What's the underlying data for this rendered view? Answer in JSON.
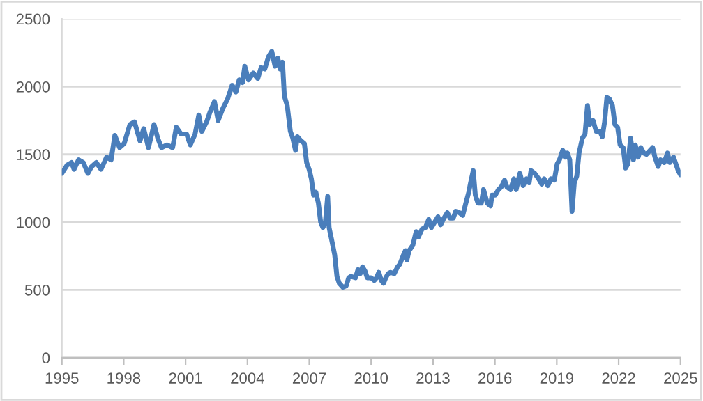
{
  "chart_data": {
    "type": "line",
    "color": "#4a7ebb",
    "grid": "y",
    "legend": false,
    "marker": "none",
    "line_style": "solid",
    "xlim": [
      1995,
      2025
    ],
    "xticks": [
      1995,
      1998,
      2001,
      2004,
      2007,
      2010,
      2013,
      2016,
      2019,
      2022,
      2025
    ],
    "ylim": [
      0,
      2500
    ],
    "yticks": [
      0,
      500,
      1000,
      1500,
      2000,
      2500
    ],
    "x": [
      1995.0,
      1995.25,
      1995.47,
      1995.59,
      1995.81,
      1996.04,
      1996.26,
      1996.44,
      1996.67,
      1996.9,
      1997.17,
      1997.39,
      1997.57,
      1997.8,
      1998.02,
      1998.3,
      1998.52,
      1998.79,
      1998.97,
      1999.2,
      1999.47,
      1999.65,
      1999.83,
      2000.1,
      2000.37,
      2000.55,
      2000.78,
      2001.05,
      2001.23,
      2001.46,
      2001.64,
      2001.79,
      2002.02,
      2002.18,
      2002.4,
      2002.58,
      2002.81,
      2003.04,
      2003.26,
      2003.44,
      2003.6,
      2003.76,
      2003.87,
      2004.05,
      2004.28,
      2004.5,
      2004.66,
      2004.84,
      2005.02,
      2005.18,
      2005.34,
      2005.47,
      2005.59,
      2005.7,
      2005.79,
      2005.93,
      2006.08,
      2006.2,
      2006.33,
      2006.42,
      2006.6,
      2006.76,
      2006.87,
      2006.99,
      2007.1,
      2007.21,
      2007.32,
      2007.44,
      2007.55,
      2007.66,
      2007.78,
      2007.89,
      2007.96,
      2008.07,
      2008.23,
      2008.34,
      2008.45,
      2008.63,
      2008.79,
      2008.91,
      2009.02,
      2009.24,
      2009.36,
      2009.47,
      2009.58,
      2009.7,
      2009.81,
      2009.99,
      2010.15,
      2010.26,
      2010.37,
      2010.49,
      2010.6,
      2010.71,
      2010.82,
      2010.94,
      2011.12,
      2011.28,
      2011.39,
      2011.57,
      2011.66,
      2011.73,
      2011.84,
      2012.02,
      2012.18,
      2012.29,
      2012.47,
      2012.63,
      2012.79,
      2012.92,
      2013.08,
      2013.24,
      2013.37,
      2013.53,
      2013.69,
      2013.83,
      2013.98,
      2014.1,
      2014.28,
      2014.44,
      2014.59,
      2014.73,
      2014.82,
      2014.95,
      2015.05,
      2015.18,
      2015.34,
      2015.45,
      2015.63,
      2015.79,
      2015.86,
      2016.02,
      2016.17,
      2016.31,
      2016.47,
      2016.58,
      2016.76,
      2016.92,
      2017.03,
      2017.21,
      2017.37,
      2017.53,
      2017.66,
      2017.75,
      2017.93,
      2018.12,
      2018.27,
      2018.39,
      2018.57,
      2018.72,
      2018.88,
      2019.02,
      2019.13,
      2019.29,
      2019.4,
      2019.51,
      2019.63,
      2019.74,
      2019.85,
      2019.97,
      2020.08,
      2020.24,
      2020.37,
      2020.49,
      2020.6,
      2020.76,
      2020.91,
      2021.09,
      2021.21,
      2021.32,
      2021.43,
      2021.55,
      2021.7,
      2021.82,
      2021.95,
      2022.07,
      2022.22,
      2022.34,
      2022.45,
      2022.58,
      2022.72,
      2022.81,
      2022.95,
      2023.08,
      2023.22,
      2023.35,
      2023.53,
      2023.65,
      2023.76,
      2023.92,
      2024.03,
      2024.21,
      2024.37,
      2024.48,
      2024.66,
      2024.75,
      2024.89,
      2025.0
    ],
    "values": [
      1360,
      1420,
      1440,
      1390,
      1460,
      1440,
      1360,
      1410,
      1440,
      1390,
      1480,
      1460,
      1640,
      1550,
      1580,
      1720,
      1740,
      1600,
      1690,
      1550,
      1720,
      1620,
      1550,
      1570,
      1550,
      1700,
      1650,
      1650,
      1570,
      1650,
      1790,
      1670,
      1740,
      1810,
      1890,
      1750,
      1840,
      1910,
      2010,
      1960,
      2050,
      2030,
      2150,
      2050,
      2100,
      2060,
      2140,
      2130,
      2220,
      2260,
      2150,
      2210,
      2130,
      2180,
      1930,
      1860,
      1670,
      1620,
      1530,
      1630,
      1600,
      1580,
      1440,
      1390,
      1320,
      1200,
      1220,
      1140,
      1000,
      960,
      1000,
      1190,
      960,
      880,
      760,
      600,
      550,
      520,
      530,
      590,
      600,
      590,
      650,
      620,
      670,
      640,
      590,
      590,
      570,
      590,
      630,
      570,
      550,
      590,
      620,
      630,
      620,
      670,
      690,
      760,
      790,
      720,
      790,
      830,
      930,
      890,
      950,
      960,
      1020,
      960,
      1000,
      1040,
      980,
      1030,
      1070,
      1030,
      1030,
      1080,
      1070,
      1050,
      1140,
      1220,
      1290,
      1380,
      1200,
      1140,
      1140,
      1240,
      1140,
      1120,
      1200,
      1200,
      1240,
      1260,
      1310,
      1260,
      1240,
      1320,
      1240,
      1360,
      1270,
      1320,
      1290,
      1380,
      1360,
      1320,
      1280,
      1320,
      1270,
      1320,
      1310,
      1430,
      1460,
      1530,
      1480,
      1510,
      1460,
      1080,
      1290,
      1340,
      1510,
      1620,
      1650,
      1860,
      1720,
      1750,
      1670,
      1670,
      1630,
      1740,
      1920,
      1910,
      1860,
      1720,
      1700,
      1570,
      1550,
      1400,
      1430,
      1620,
      1460,
      1570,
      1480,
      1550,
      1510,
      1500,
      1530,
      1550,
      1480,
      1410,
      1460,
      1440,
      1510,
      1440,
      1480,
      1440,
      1380,
      1350
    ]
  }
}
